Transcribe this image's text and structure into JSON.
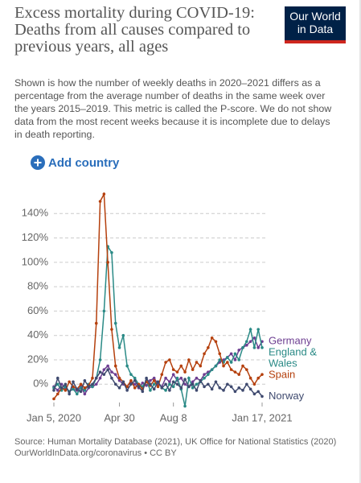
{
  "header": {
    "title": "Excess mortality during COVID-19: Deaths from all causes compared to previous years, all ages",
    "logo": "Our World in Data",
    "subtitle": "Shown is how the number of weekly deaths in 2020–2021 differs as a percentage from the average number of deaths in the same week over the years 2015–2019. This metric is called the P-score. We do not show data from the most recent weeks because it is incomplete due to delays in death reporting.",
    "button": "Add country"
  },
  "chart_data": {
    "type": "line",
    "categories": [
      "Jan 5, 2020",
      null,
      null,
      null,
      null,
      null,
      null,
      null,
      null,
      null,
      null,
      null,
      null,
      null,
      null,
      null,
      null,
      "Apr 30",
      null,
      null,
      null,
      null,
      null,
      null,
      null,
      null,
      null,
      null,
      null,
      null,
      null,
      "Aug 8",
      null,
      null,
      null,
      null,
      null,
      null,
      null,
      null,
      null,
      null,
      null,
      null,
      null,
      null,
      null,
      null,
      null,
      null,
      null,
      null,
      null,
      null,
      "Jan 17, 2021"
    ],
    "series": [
      {
        "name": "Germany",
        "color": "#6d3e91",
        "values": [
          -2,
          -5,
          0,
          -3,
          -6,
          -4,
          -5,
          -2,
          -8,
          -3,
          -2,
          0,
          5,
          12,
          15,
          10,
          8,
          3,
          0,
          -2,
          2,
          0,
          -3,
          1,
          -1,
          3,
          5,
          0,
          -2,
          5,
          2,
          8,
          3,
          5,
          0,
          -2,
          2,
          5,
          3,
          8,
          10,
          12,
          15,
          18,
          20,
          22,
          25,
          20,
          28,
          30,
          32,
          35,
          38,
          30,
          35
        ]
      },
      {
        "name": "England & Wales",
        "color": "#2a8a86",
        "values": [
          -3,
          0,
          -5,
          -2,
          -6,
          -4,
          -8,
          -3,
          -5,
          0,
          -2,
          5,
          20,
          60,
          113,
          108,
          50,
          30,
          40,
          15,
          8,
          5,
          0,
          -2,
          3,
          -5,
          0,
          2,
          -3,
          -5,
          0,
          -2,
          5,
          -4,
          -18,
          5,
          -3,
          0,
          2,
          5,
          8,
          12,
          15,
          20,
          18,
          22,
          18,
          25,
          20,
          30,
          35,
          45,
          30,
          45,
          30
        ]
      },
      {
        "name": "Spain",
        "color": "#b5400d",
        "values": [
          -12,
          -8,
          -3,
          -5,
          2,
          -2,
          -4,
          0,
          -3,
          -1,
          5,
          50,
          150,
          156,
          100,
          45,
          15,
          5,
          2,
          -2,
          3,
          -3,
          0,
          -4,
          2,
          -1,
          3,
          -2,
          8,
          18,
          20,
          12,
          10,
          15,
          10,
          20,
          12,
          18,
          15,
          25,
          30,
          38,
          35,
          25,
          15,
          18,
          12,
          10,
          8,
          15,
          12,
          5,
          0,
          5,
          8
        ]
      },
      {
        "name": "Norway",
        "color": "#3f4a6f",
        "values": [
          -5,
          5,
          -3,
          0,
          -8,
          2,
          -4,
          -6,
          3,
          -2,
          0,
          5,
          10,
          8,
          12,
          5,
          0,
          -3,
          2,
          -5,
          0,
          3,
          -2,
          -6,
          5,
          0,
          -4,
          2,
          -3,
          0,
          -5,
          2,
          0,
          -3,
          4,
          -2,
          0,
          -5,
          3,
          -2,
          0,
          -4,
          2,
          -3,
          -5,
          0,
          -2,
          -6,
          -3,
          -5,
          0,
          -4,
          -8,
          -6,
          -10
        ]
      }
    ],
    "ylim": [
      -15,
      160
    ],
    "yticks": [
      {
        "value": 0,
        "label": "0%"
      },
      {
        "value": 20,
        "label": "20%"
      },
      {
        "value": 40,
        "label": "40%"
      },
      {
        "value": 60,
        "label": "60%"
      },
      {
        "value": 80,
        "label": "80%"
      },
      {
        "value": 100,
        "label": "100%"
      },
      {
        "value": 120,
        "label": "120%"
      },
      {
        "value": 140,
        "label": "140%"
      }
    ],
    "grid": true
  },
  "footer": {
    "source": "Source: Human Mortality Database (2021), UK Office for National Statistics (2020)",
    "url": "OurWorldInData.org/coronavirus • CC BY"
  }
}
